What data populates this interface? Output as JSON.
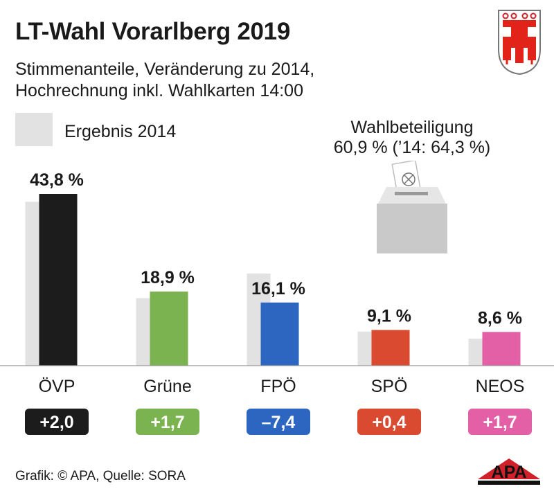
{
  "title": "LT-Wahl Vorarlberg 2019",
  "subtitle": [
    "Stimmenanteile, Veränderung zu 2014,",
    "Hochrechnung inkl. Wahlkarten 14:00"
  ],
  "legend": {
    "label": "Ergebnis 2014",
    "color": "#e2e2e2"
  },
  "turnout": {
    "label": "Wahlbeteiligung",
    "value": "60,9 % (’14: 64,3 %)"
  },
  "footer": "Grafik: © APA, Quelle: SORA",
  "logo_text": "APA",
  "chart_data": {
    "type": "bar",
    "categories": [
      "ÖVP",
      "Grüne",
      "FPÖ",
      "SPÖ",
      "NEOS"
    ],
    "series": [
      {
        "name": "",
        "values": [
          43.8,
          18.9,
          16.1,
          9.1,
          8.6
        ],
        "labels": [
          "43,8 %",
          "18,9 %",
          "16,1 %",
          "9,1 %",
          "8,6 %"
        ]
      },
      {
        "name": "Ergebnis 2014",
        "values": [
          41.8,
          17.2,
          23.5,
          8.7,
          6.9
        ]
      }
    ],
    "changes": [
      "+2,0",
      "+1,7",
      "–7,4",
      "+0,4",
      "+1,7"
    ],
    "colors": [
      "#1c1c1c",
      "#7cb351",
      "#2d66c0",
      "#d94a30",
      "#e35fa6"
    ],
    "ylim": [
      0,
      43.8
    ]
  }
}
